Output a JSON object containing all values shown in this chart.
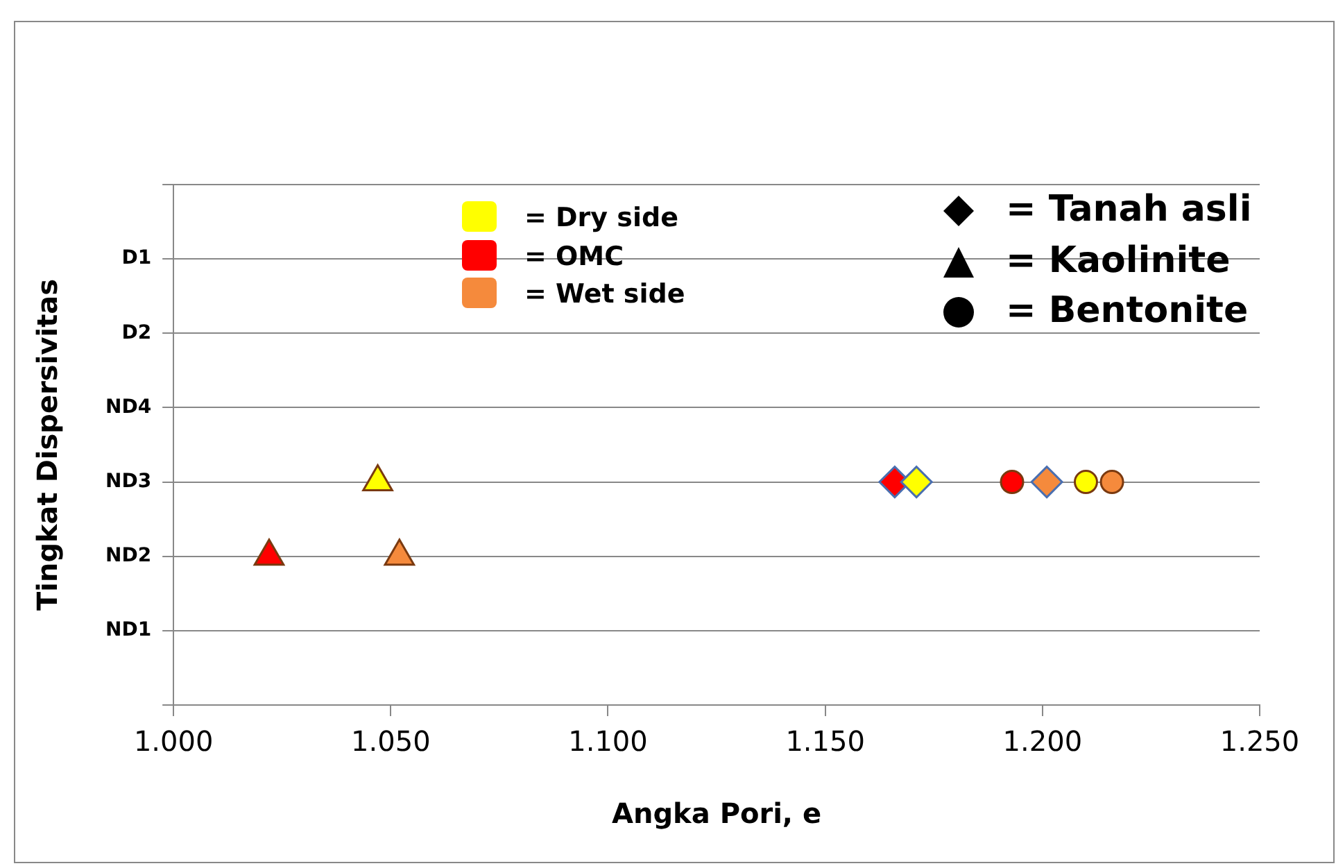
{
  "chart_data": {
    "type": "scatter",
    "orientation": "horizontal",
    "xlabel": "Angka Pori, e",
    "ylabel": "Tingkat Dispersivitas",
    "categories": [
      "D1",
      "D2",
      "ND4",
      "ND3",
      "ND2",
      "ND1"
    ],
    "xlim": [
      1.0,
      1.25
    ],
    "xticks": [
      {
        "value": 1.0,
        "label": "1.000"
      },
      {
        "value": 1.05,
        "label": "1.050"
      },
      {
        "value": 1.1,
        "label": "1.100"
      },
      {
        "value": 1.15,
        "label": "1.150"
      },
      {
        "value": 1.2,
        "label": "1.200"
      },
      {
        "value": 1.25,
        "label": "1.250"
      }
    ],
    "grid": "y",
    "legend": false,
    "annotations": [
      "= Dry side",
      "= OMC",
      "= Wet side",
      "= Tanah asli",
      "= Kaolinite",
      "= Bentonite"
    ],
    "series": [
      {
        "color": "#ffff00",
        "marker": "diamond",
        "values": [
          null,
          null,
          null,
          1.171,
          null,
          null
        ]
      },
      {
        "color": "#ff0000",
        "marker": "diamond",
        "values": [
          null,
          null,
          null,
          1.166,
          null,
          null
        ]
      },
      {
        "color": "#f58a3c",
        "marker": "diamond",
        "values": [
          null,
          null,
          null,
          1.201,
          null,
          null
        ]
      },
      {
        "color": "#ffff00",
        "marker": "triangle",
        "values": [
          null,
          null,
          null,
          1.047,
          null,
          null
        ]
      },
      {
        "color": "#ff0000",
        "marker": "triangle",
        "values": [
          null,
          null,
          null,
          null,
          1.022,
          null
        ]
      },
      {
        "color": "#f58a3c",
        "marker": "triangle",
        "values": [
          null,
          null,
          null,
          null,
          1.052,
          null
        ]
      },
      {
        "color": "#ffff00",
        "marker": "circle",
        "values": [
          null,
          null,
          null,
          1.21,
          null,
          null
        ]
      },
      {
        "color": "#ff0000",
        "marker": "circle",
        "values": [
          null,
          null,
          null,
          1.193,
          null,
          null
        ]
      },
      {
        "color": "#f58a3c",
        "marker": "circle",
        "values": [
          null,
          null,
          null,
          1.216,
          null,
          null
        ]
      }
    ]
  }
}
